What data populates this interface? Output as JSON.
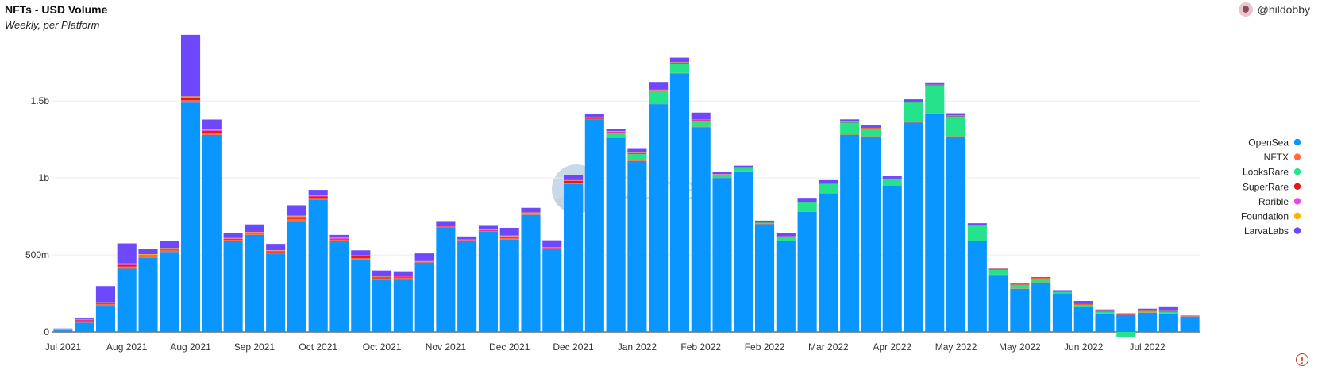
{
  "header": {
    "title": "NFTs - USD Volume",
    "subtitle": "Weekly, per Platform",
    "author": "@hildobby"
  },
  "watermark": {
    "text": "Dune"
  },
  "warning_icon": {
    "glyph": "!"
  },
  "chart_data": {
    "type": "bar",
    "stacked": true,
    "title": "NFTs - USD Volume",
    "subtitle": "Weekly, per Platform",
    "xlabel": "",
    "ylabel": "",
    "ylim": [
      0,
      1950000000
    ],
    "yticks": [
      0,
      500000000,
      1000000000,
      1500000000
    ],
    "ytick_labels": [
      "0",
      "500m",
      "1b",
      "1.5b"
    ],
    "xtick_labels": [
      "Jul 2021",
      "Aug 2021",
      "Aug 2021",
      "Sep 2021",
      "Oct 2021",
      "Oct 2021",
      "Nov 2021",
      "Dec 2021",
      "Dec 2021",
      "Jan 2022",
      "Feb 2022",
      "Feb 2022",
      "Mar 2022",
      "Apr 2022",
      "May 2022",
      "May 2022",
      "Jun 2022",
      "Jul 2022"
    ],
    "xtick_positions": [
      0,
      3,
      6,
      9,
      12,
      15,
      18,
      21,
      24,
      27,
      30,
      33,
      36,
      39,
      42,
      45,
      48,
      51
    ],
    "grid": true,
    "legend_position": "right",
    "series": [
      {
        "name": "OpenSea",
        "color": "#0996ff",
        "values": [
          10,
          60,
          170,
          410,
          480,
          520,
          1490,
          1280,
          590,
          630,
          510,
          720,
          860,
          590,
          470,
          340,
          345,
          450,
          680,
          590,
          650,
          600,
          760,
          540,
          960,
          1380,
          1260,
          1110,
          1480,
          1680,
          1330,
          1000,
          1040,
          700,
          590,
          780,
          900,
          1280,
          1270,
          950,
          1360,
          1420,
          1270,
          590,
          370,
          280,
          320,
          250,
          160,
          120,
          110,
          125,
          120,
          90
        ]
      },
      {
        "name": "NFTX",
        "color": "#ff6b3d",
        "values": [
          3,
          10,
          10,
          15,
          10,
          10,
          15,
          15,
          8,
          8,
          8,
          15,
          10,
          10,
          10,
          8,
          8,
          3,
          3,
          3,
          5,
          10,
          5,
          3,
          10,
          5,
          5,
          5,
          5,
          3,
          3,
          3,
          3,
          2,
          2,
          2,
          2,
          2,
          2,
          2,
          2,
          2,
          2,
          2,
          2,
          2,
          2,
          2,
          2,
          2,
          2,
          2,
          2,
          2
        ]
      },
      {
        "name": "LooksRare",
        "color": "#24e38b",
        "values": [
          0,
          0,
          0,
          0,
          0,
          0,
          0,
          0,
          0,
          0,
          0,
          0,
          0,
          0,
          0,
          0,
          0,
          0,
          0,
          0,
          0,
          0,
          0,
          0,
          0,
          0,
          30,
          40,
          80,
          60,
          40,
          15,
          20,
          10,
          25,
          60,
          60,
          80,
          50,
          40,
          130,
          180,
          130,
          100,
          35,
          25,
          25,
          10,
          15,
          10,
          -35,
          10,
          10,
          5
        ]
      },
      {
        "name": "SuperRare",
        "color": "#ee1111",
        "values": [
          2,
          5,
          5,
          10,
          5,
          5,
          15,
          10,
          5,
          5,
          5,
          10,
          10,
          5,
          10,
          5,
          5,
          2,
          2,
          2,
          3,
          10,
          5,
          2,
          10,
          3,
          3,
          3,
          3,
          3,
          2,
          2,
          2,
          1,
          1,
          1,
          1,
          1,
          1,
          1,
          1,
          1,
          1,
          1,
          1,
          1,
          1,
          1,
          1,
          1,
          1,
          1,
          1,
          1
        ]
      },
      {
        "name": "Rarible",
        "color": "#ea45e8",
        "values": [
          2,
          5,
          5,
          5,
          5,
          5,
          5,
          5,
          4,
          4,
          4,
          5,
          5,
          4,
          4,
          3,
          3,
          3,
          3,
          3,
          3,
          3,
          3,
          3,
          3,
          3,
          3,
          3,
          3,
          3,
          3,
          3,
          3,
          2,
          2,
          2,
          2,
          2,
          2,
          2,
          2,
          2,
          2,
          2,
          2,
          2,
          2,
          2,
          2,
          2,
          2,
          2,
          2,
          2
        ]
      },
      {
        "name": "Foundation",
        "color": "#f7b307",
        "values": [
          2,
          3,
          3,
          5,
          5,
          5,
          5,
          5,
          3,
          3,
          3,
          5,
          5,
          3,
          3,
          3,
          3,
          2,
          2,
          2,
          3,
          3,
          3,
          2,
          3,
          3,
          3,
          3,
          3,
          3,
          2,
          2,
          2,
          1,
          1,
          1,
          1,
          1,
          1,
          1,
          1,
          1,
          1,
          1,
          1,
          1,
          1,
          1,
          1,
          1,
          1,
          1,
          1,
          1
        ]
      },
      {
        "name": "LarvaLabs",
        "color": "#6d48fc",
        "values": [
          3,
          10,
          105,
          130,
          35,
          45,
          400,
          65,
          33,
          48,
          42,
          68,
          33,
          18,
          33,
          40,
          30,
          50,
          30,
          20,
          30,
          50,
          30,
          45,
          35,
          20,
          15,
          25,
          50,
          30,
          45,
          15,
          10,
          7,
          20,
          25,
          20,
          15,
          15,
          15,
          15,
          15,
          15,
          10,
          5,
          5,
          5,
          5,
          20,
          10,
          5,
          10,
          30,
          5
        ]
      }
    ]
  }
}
